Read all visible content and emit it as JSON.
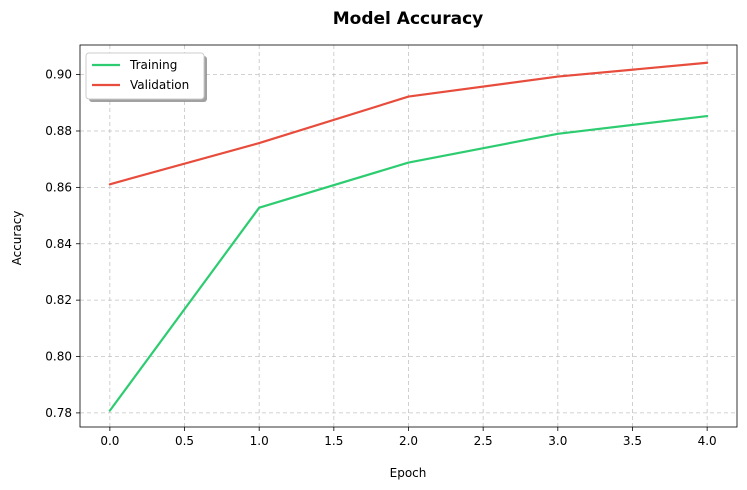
{
  "chart_data": {
    "type": "line",
    "title": "Model Accuracy",
    "xlabel": "Epoch",
    "ylabel": "Accuracy",
    "x": [
      0,
      1,
      2,
      3,
      4
    ],
    "xlim": [
      -0.2,
      4.2
    ],
    "ylim": [
      0.775,
      0.9105
    ],
    "xticks": [
      0.0,
      0.5,
      1.0,
      1.5,
      2.0,
      2.5,
      3.0,
      3.5,
      4.0
    ],
    "xtick_labels": [
      "0.0",
      "0.5",
      "1.0",
      "1.5",
      "2.0",
      "2.5",
      "3.0",
      "3.5",
      "4.0"
    ],
    "yticks": [
      0.78,
      0.8,
      0.82,
      0.84,
      0.86,
      0.88,
      0.9
    ],
    "ytick_labels": [
      "0.78",
      "0.80",
      "0.82",
      "0.84",
      "0.86",
      "0.88",
      "0.90"
    ],
    "grid": true,
    "legend_position": "top-left",
    "series": [
      {
        "name": "Training",
        "color": "#2ecc71",
        "values": [
          0.7808,
          0.8528,
          0.8688,
          0.879,
          0.8853
        ]
      },
      {
        "name": "Validation",
        "color": "#e74c3c",
        "values": [
          0.8611,
          0.8757,
          0.8922,
          0.8993,
          0.9042
        ]
      }
    ]
  }
}
